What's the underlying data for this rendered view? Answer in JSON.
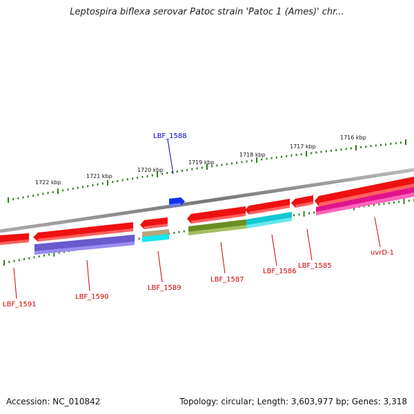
{
  "title": "Leptospira biflexa serovar Patoc strain 'Patoc 1 (Ames)' chr...",
  "footer": {
    "accession": "Accession: NC_010842",
    "topology": "Topology: circular; Length: 3,603,977 bp; Genes: 3,318"
  },
  "ticks": [
    "1722 kbp",
    "1721 kbp",
    "1720 kbp",
    "1719 kbp",
    "1718 kbp",
    "1717 kbp",
    "1716 kbp"
  ],
  "genes": [
    {
      "name": "LBF_1591",
      "color": "#cc0000"
    },
    {
      "name": "LBF_1590",
      "color": "#cc0000"
    },
    {
      "name": "LBF_1589",
      "color": "#cc0000"
    },
    {
      "name": "LBF_1588",
      "color": "#0000cc"
    },
    {
      "name": "LBF_1587",
      "color": "#cc0000"
    },
    {
      "name": "LBF_1586",
      "color": "#cc0000"
    },
    {
      "name": "LBF_1585",
      "color": "#cc0000"
    },
    {
      "name": "uvrD-1",
      "color": "#cc0000"
    }
  ],
  "colors": {
    "backbone": "#8a8a8a",
    "gene_red": "#ee1111",
    "gene_blue": "#1133ee",
    "domain_purple": "#6a5acd",
    "domain_tan": "#b8a67a",
    "domain_cyan": "#14c8d2",
    "domain_olive": "#6b8e23",
    "domain_magenta": "#e0148c",
    "tick_green": "#2e7d1e"
  }
}
